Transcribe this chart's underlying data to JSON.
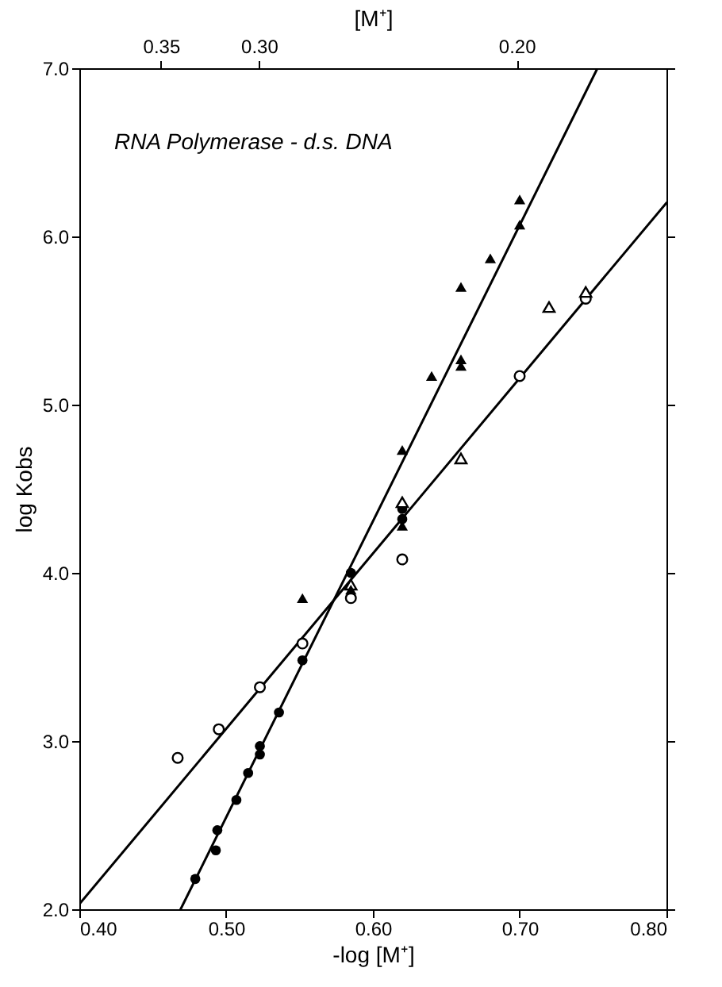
{
  "chart_data": {
    "type": "scatter",
    "xlabel": "-log [M⁺]",
    "ylabel": "log Kobs",
    "x2label": "[M⁺]",
    "annotations": [
      "RNA Polymerase - d.s. DNA"
    ],
    "xlim": [
      0.4,
      0.8
    ],
    "ylim": [
      2.0,
      7.0
    ],
    "xticks": [
      {
        "value": 0.4,
        "label": "0.40"
      },
      {
        "value": 0.5,
        "label": "0.50"
      },
      {
        "value": 0.6,
        "label": "0.60"
      },
      {
        "value": 0.7,
        "label": "0.70"
      },
      {
        "value": 0.8,
        "label": "0.80"
      }
    ],
    "yticks": [
      {
        "value": 2,
        "label": "2.0"
      },
      {
        "value": 3,
        "label": "3.0"
      },
      {
        "value": 4,
        "label": "4.0"
      },
      {
        "value": 5,
        "label": "5.0"
      },
      {
        "value": 6,
        "label": "6.0"
      },
      {
        "value": 7,
        "label": "7.0"
      }
    ],
    "x2lim": [
      0.398,
      0.158
    ],
    "log": "x2",
    "x2ticks": [
      {
        "value": 0.35,
        "label": "0.35"
      },
      {
        "value": 0.3,
        "label": "0.30"
      },
      {
        "value": 0.2,
        "label": "0.20"
      }
    ],
    "grid": false,
    "series": [
      {
        "type": "line",
        "color": "#000000",
        "x": [
          0.4,
          0.8
        ],
        "values": [
          2.03,
          6.2
        ],
        "marker": "none",
        "line_style": "solid"
      },
      {
        "type": "line",
        "color": "#000000",
        "x": [
          0.469,
          0.753
        ],
        "values": [
          2.0,
          7.0
        ],
        "marker": "none",
        "line_style": "solid"
      },
      {
        "color": "#000000",
        "marker": "circle",
        "x": [
          0.467,
          0.495,
          0.523,
          0.552,
          0.585,
          0.62,
          0.7,
          0.745
        ],
        "values": [
          2.9,
          3.07,
          3.32,
          3.58,
          3.85,
          4.08,
          5.17,
          5.63
        ]
      },
      {
        "color": "#000000",
        "marker": "circle",
        "x": [
          0.479,
          0.493,
          0.494,
          0.507,
          0.515,
          0.523,
          0.523,
          0.536,
          0.552,
          0.585,
          0.62,
          0.62
        ],
        "values": [
          2.18,
          2.35,
          2.47,
          2.65,
          2.81,
          2.92,
          2.97,
          3.17,
          3.48,
          4.0,
          4.32,
          4.38
        ]
      },
      {
        "color": "#000000",
        "marker": "triangle",
        "x": [
          0.585,
          0.62,
          0.66,
          0.72,
          0.745
        ],
        "values": [
          3.93,
          4.42,
          4.68,
          5.58,
          5.67
        ]
      },
      {
        "color": "#000000",
        "marker": "triangle",
        "x": [
          0.552,
          0.585,
          0.62,
          0.62,
          0.64,
          0.66,
          0.66,
          0.66,
          0.68,
          0.7,
          0.7
        ],
        "values": [
          3.85,
          3.9,
          4.28,
          4.73,
          5.17,
          5.23,
          5.27,
          5.7,
          5.87,
          6.07,
          6.22
        ]
      }
    ]
  }
}
